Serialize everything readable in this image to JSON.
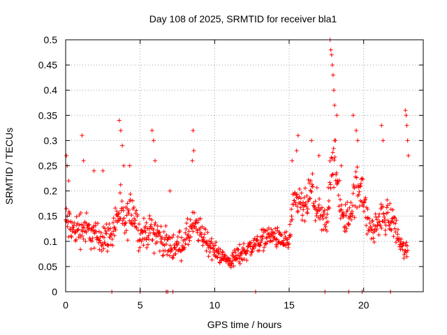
{
  "chart_data": {
    "type": "scatter",
    "title": "Day 108 of 2025, SRMTID for receiver bla1",
    "xlabel": "GPS time / hours",
    "ylabel": "SRMTID / TECUs",
    "xlim": [
      0,
      24
    ],
    "ylim": [
      0,
      0.5
    ],
    "xticks": [
      0,
      5,
      10,
      15,
      20
    ],
    "xtick_labels": [
      "0",
      "5",
      "10",
      "15",
      "20"
    ],
    "yticks": [
      0,
      0.05,
      0.1,
      0.15,
      0.2,
      0.25,
      0.3,
      0.35,
      0.4,
      0.45,
      0.5
    ],
    "ytick_labels": [
      "0",
      "0.05",
      "0.1",
      "0.15",
      "0.2",
      "0.25",
      "0.3",
      "0.35",
      "0.4",
      "0.45",
      "0.5"
    ],
    "grid": true,
    "marker": "+",
    "color": "#ff0000",
    "series": [
      {
        "name": "SRMTID",
        "profile": {
          "x": [
            0,
            0.3,
            0.6,
            1.0,
            1.5,
            2.0,
            2.5,
            3.0,
            3.6,
            4.0,
            4.5,
            5.0,
            5.5,
            6.0,
            6.5,
            7.0,
            7.5,
            8.0,
            8.5,
            9.0,
            9.5,
            10.0,
            10.5,
            11.0,
            11.5,
            12.0,
            12.5,
            13.0,
            13.5,
            14.0,
            14.5,
            15.0,
            15.3,
            15.6,
            16.0,
            16.5,
            17.0,
            17.5,
            17.9,
            18.2,
            18.6,
            19.0,
            19.5,
            19.9,
            20.2,
            20.6,
            21.0,
            21.5,
            22.0,
            22.5,
            22.9
          ],
          "y": [
            0.14,
            0.13,
            0.12,
            0.13,
            0.12,
            0.11,
            0.11,
            0.11,
            0.16,
            0.13,
            0.17,
            0.11,
            0.12,
            0.12,
            0.1,
            0.09,
            0.09,
            0.1,
            0.13,
            0.12,
            0.1,
            0.08,
            0.07,
            0.06,
            0.07,
            0.08,
            0.09,
            0.1,
            0.11,
            0.11,
            0.1,
            0.1,
            0.17,
            0.18,
            0.16,
            0.2,
            0.15,
            0.13,
            0.28,
            0.22,
            0.14,
            0.15,
            0.2,
            0.22,
            0.14,
            0.12,
            0.14,
            0.15,
            0.14,
            0.09,
            0.08
          ],
          "spread": [
            0.05,
            0.06,
            0.04,
            0.06,
            0.05,
            0.04,
            0.05,
            0.04,
            0.07,
            0.05,
            0.07,
            0.04,
            0.04,
            0.06,
            0.04,
            0.04,
            0.04,
            0.04,
            0.05,
            0.04,
            0.04,
            0.03,
            0.02,
            0.02,
            0.03,
            0.03,
            0.03,
            0.03,
            0.03,
            0.03,
            0.03,
            0.04,
            0.05,
            0.05,
            0.05,
            0.06,
            0.05,
            0.05,
            0.1,
            0.08,
            0.04,
            0.05,
            0.07,
            0.08,
            0.04,
            0.04,
            0.05,
            0.05,
            0.05,
            0.03,
            0.03
          ]
        },
        "spikes": [
          [
            0.05,
            0.27
          ],
          [
            0.1,
            0.25
          ],
          [
            0.2,
            0.22
          ],
          [
            1.1,
            0.31
          ],
          [
            1.2,
            0.26
          ],
          [
            1.9,
            0.24
          ],
          [
            2.5,
            0.24
          ],
          [
            3.6,
            0.34
          ],
          [
            3.7,
            0.32
          ],
          [
            3.8,
            0.29
          ],
          [
            3.9,
            0.25
          ],
          [
            4.3,
            0.25
          ],
          [
            5.8,
            0.32
          ],
          [
            5.9,
            0.3
          ],
          [
            6.0,
            0.26
          ],
          [
            7.0,
            0.2
          ],
          [
            8.5,
            0.26
          ],
          [
            8.55,
            0.32
          ],
          [
            8.6,
            0.28
          ],
          [
            15.2,
            0.26
          ],
          [
            15.5,
            0.28
          ],
          [
            15.6,
            0.31
          ],
          [
            16.5,
            0.3
          ],
          [
            17.0,
            0.27
          ],
          [
            17.75,
            0.5
          ],
          [
            17.8,
            0.48
          ],
          [
            17.85,
            0.47
          ],
          [
            17.9,
            0.45
          ],
          [
            17.95,
            0.43
          ],
          [
            18.0,
            0.4
          ],
          [
            18.05,
            0.37
          ],
          [
            18.2,
            0.35
          ],
          [
            18.5,
            0.25
          ],
          [
            19.3,
            0.35
          ],
          [
            19.5,
            0.32
          ],
          [
            19.6,
            0.3
          ],
          [
            21.2,
            0.33
          ],
          [
            21.3,
            0.3
          ],
          [
            22.8,
            0.36
          ],
          [
            22.85,
            0.35
          ],
          [
            22.9,
            0.33
          ],
          [
            22.95,
            0.3
          ],
          [
            23.0,
            0.27
          ]
        ],
        "zeros": [
          3.1,
          5.0,
          6.75,
          6.85,
          7.2,
          12.75,
          17.4,
          19.0,
          19.9,
          21.8
        ]
      }
    ]
  }
}
